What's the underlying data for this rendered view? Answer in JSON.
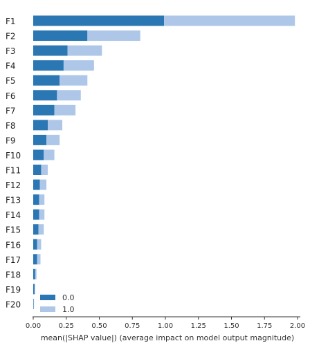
{
  "chart_data": {
    "type": "bar",
    "orientation": "horizontal",
    "stacked": true,
    "categories": [
      "F1",
      "F2",
      "F3",
      "F4",
      "F5",
      "F6",
      "F7",
      "F8",
      "F9",
      "F10",
      "F11",
      "F12",
      "F13",
      "F14",
      "F15",
      "F16",
      "F17",
      "F18",
      "F19",
      "F20"
    ],
    "series": [
      {
        "name": "0.0",
        "color": "#2a77b4",
        "values": [
          0.99,
          0.41,
          0.26,
          0.23,
          0.2,
          0.18,
          0.16,
          0.11,
          0.1,
          0.08,
          0.06,
          0.05,
          0.045,
          0.045,
          0.04,
          0.03,
          0.03,
          0.015,
          0.01,
          0.003
        ]
      },
      {
        "name": "1.0",
        "color": "#aec7e8",
        "values": [
          0.99,
          0.4,
          0.26,
          0.23,
          0.21,
          0.18,
          0.16,
          0.11,
          0.1,
          0.08,
          0.05,
          0.05,
          0.04,
          0.04,
          0.04,
          0.03,
          0.025,
          0.01,
          0.005,
          0.003
        ]
      }
    ],
    "xlabel": "mean(|SHAP value|) (average impact on model output magnitude)",
    "xlim": [
      0,
      2.0
    ],
    "xticks": [
      "0.00",
      "0.25",
      "0.50",
      "0.75",
      "1.00",
      "1.25",
      "1.50",
      "1.75",
      "2.00"
    ],
    "grid": false,
    "legend_position": "bottom-left"
  }
}
